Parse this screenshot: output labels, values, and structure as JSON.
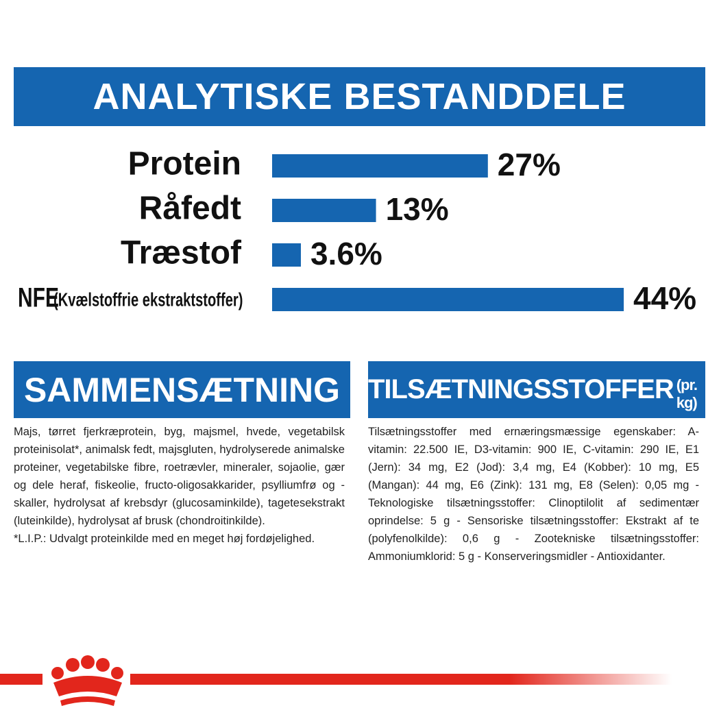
{
  "chart_data": {
    "type": "bar",
    "title": "ANALYTISKE BESTANDDELE",
    "categories": [
      "Protein",
      "Råfedt",
      "Træstof",
      "NFE"
    ],
    "annotation": "(Kvælstoffrie ekstraktstoffer)",
    "values": [
      27,
      13,
      3.6,
      44
    ],
    "value_labels": [
      "27%",
      "13%",
      "3.6%",
      "44%"
    ],
    "color": "#1565b0"
  },
  "sections": [
    {
      "title": "SAMMENSÆTNING",
      "text": "Majs, tørret fjerkræprotein, byg, majsmel, hvede, vegetabilsk proteinisolat*, animalsk fedt, majsgluten, hydrolyserede animalske proteiner, vegetabilske fibre, roetrævler, mineraler, sojaolie, gær og dele heraf, fiskeolie, fructo-oligosakkarider, psylliumfrø og -skaller, hydrolysat af krebsdyr (glucosaminkilde), tagetesekstrakt (luteinkilde), hydrolysat af brusk (chondroitinkilde).\n*L.I.P.: Udvalgt proteinkilde med en meget høj fordøjelighed."
    },
    {
      "title": "TILSÆTNINGSSTOFFER",
      "title_note": "(pr. kg)",
      "text": "Tilsætningsstoffer med ernæringsmæssige egenskaber: A-vitamin: 22.500 IE, D3-vitamin: 900 IE, C-vitamin: 290 IE, E1 (Jern): 34 mg, E2 (Jod): 3,4 mg, E4 (Kobber): 10 mg, E5 (Mangan): 44 mg, E6 (Zink): 131 mg, E8 (Selen): 0,05 mg - Teknologiske tilsætningsstoffer: Clinoptilolit af sedimentær oprindelse: 5 g - Sensoriske tilsætningsstoffer: Ekstrakt af te (polyfenolkilde): 0,6 g - Zootekniske tilsætningsstoffer: Ammoniumklorid: 5 g - Konserveringsmidler - Antioxidanter."
    }
  ]
}
